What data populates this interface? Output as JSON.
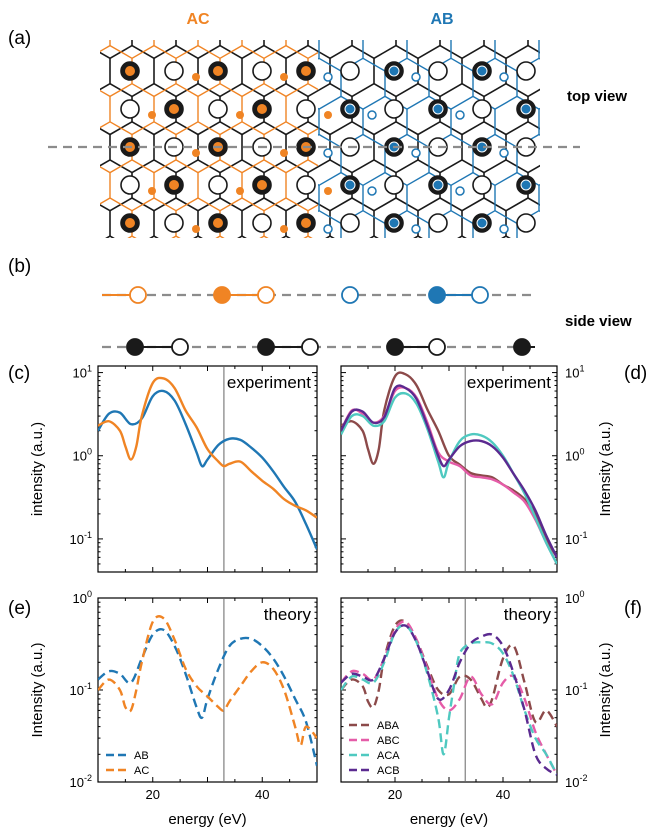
{
  "colors": {
    "AB": "#1f77b4",
    "AC": "#f08424",
    "black": "#1a1a1a",
    "gray": "#8c8c8c",
    "ABA": "#8c4a4a",
    "ABC": "#e55ca8",
    "ACA": "#4fc9c0",
    "ACB": "#5b2a90"
  },
  "panel_labels": {
    "a": "(a)",
    "b": "(b)",
    "c": "(c)",
    "d": "(d)",
    "e": "(e)",
    "f": "(f)"
  },
  "structure": {
    "ac_label": "AC",
    "ab_label": "AB",
    "top_view_label": "top view",
    "side_view_label": "side view"
  },
  "chart_data": [
    {
      "id": "c",
      "type": "line",
      "title": "experiment",
      "ylabel": "intensity (a.u.)",
      "xlabel": "",
      "xlim": [
        10,
        50
      ],
      "ylim": [
        0.04,
        12
      ],
      "yscale": "log",
      "vline": 33,
      "xticks": [
        20,
        40
      ],
      "yticks": [
        {
          "v": 10,
          "b": "10",
          "e": "1"
        },
        {
          "v": 1,
          "b": "10",
          "e": "0"
        },
        {
          "v": 0.1,
          "b": "10",
          "e": "-1"
        }
      ],
      "series": [
        {
          "name": "AB",
          "style": "solid",
          "color_key": "AB",
          "x": [
            10,
            12,
            14,
            16,
            18,
            20,
            22,
            24,
            26,
            28,
            29,
            30,
            32,
            34,
            36,
            38,
            40,
            42,
            44,
            46,
            48,
            50
          ],
          "y": [
            2.0,
            3.2,
            3.3,
            2.4,
            2.8,
            5.2,
            6.0,
            4.6,
            2.4,
            1.1,
            0.75,
            0.9,
            1.35,
            1.6,
            1.55,
            1.25,
            0.95,
            0.65,
            0.42,
            0.28,
            0.15,
            0.075
          ]
        },
        {
          "name": "AC",
          "style": "solid",
          "color_key": "AC",
          "x": [
            10,
            12,
            14,
            15,
            16,
            17,
            18,
            20,
            22,
            24,
            26,
            28,
            30,
            32,
            33,
            34,
            36,
            38,
            40,
            42,
            44,
            46,
            48,
            50
          ],
          "y": [
            2.3,
            2.6,
            2.0,
            1.3,
            0.9,
            1.3,
            3.0,
            7.5,
            8.5,
            6.5,
            3.5,
            2.2,
            1.2,
            0.85,
            0.75,
            0.8,
            0.85,
            0.65,
            0.5,
            0.4,
            0.3,
            0.25,
            0.22,
            0.18
          ]
        }
      ]
    },
    {
      "id": "d",
      "type": "line",
      "title": "experiment",
      "ylabel": "Intensity (a.u.)",
      "xlabel": "",
      "xlim": [
        10,
        50
      ],
      "ylim": [
        0.04,
        12
      ],
      "yscale": "log",
      "vline": 33,
      "xticks": [
        20,
        40
      ],
      "yticks": [
        {
          "v": 10,
          "b": "10",
          "e": "1"
        },
        {
          "v": 1,
          "b": "10",
          "e": "0"
        },
        {
          "v": 0.1,
          "b": "10",
          "e": "-1"
        }
      ],
      "series": [
        {
          "name": "ABA",
          "style": "solid",
          "color_key": "ABA",
          "x": [
            10,
            12,
            14,
            15,
            16,
            17,
            18,
            20,
            22,
            24,
            26,
            28,
            30,
            32,
            34,
            36,
            38,
            40,
            42,
            44,
            46,
            48,
            50
          ],
          "y": [
            2.3,
            2.6,
            2.0,
            1.2,
            0.8,
            1.2,
            3.5,
            9.0,
            9.5,
            7.0,
            3.6,
            2.0,
            1.0,
            0.78,
            0.62,
            0.58,
            0.55,
            0.45,
            0.38,
            0.3,
            0.2,
            0.1,
            0.06
          ]
        },
        {
          "name": "ABC",
          "style": "solid",
          "color_key": "ABC",
          "x": [
            10,
            12,
            14,
            16,
            18,
            20,
            22,
            24,
            26,
            28,
            30,
            32,
            34,
            36,
            38,
            40,
            42,
            44,
            46,
            48,
            50
          ],
          "y": [
            2.0,
            3.5,
            3.2,
            2.5,
            3.0,
            6.0,
            6.5,
            5.0,
            2.5,
            1.1,
            0.85,
            0.75,
            0.58,
            0.55,
            0.52,
            0.45,
            0.36,
            0.28,
            0.17,
            0.09,
            0.05
          ]
        },
        {
          "name": "ACA",
          "style": "solid",
          "color_key": "ACA",
          "x": [
            10,
            12,
            14,
            16,
            18,
            20,
            22,
            24,
            26,
            28,
            29,
            30,
            32,
            34,
            36,
            38,
            40,
            42,
            44,
            46,
            48,
            50
          ],
          "y": [
            1.8,
            3.0,
            3.0,
            2.3,
            2.6,
            5.0,
            5.6,
            4.2,
            2.1,
            0.85,
            0.55,
            0.85,
            1.5,
            1.8,
            1.75,
            1.45,
            1.0,
            0.6,
            0.35,
            0.18,
            0.09,
            0.05
          ]
        },
        {
          "name": "ACB",
          "style": "solid",
          "color_key": "ACB",
          "x": [
            10,
            12,
            14,
            16,
            18,
            20,
            22,
            24,
            26,
            28,
            29,
            30,
            32,
            34,
            36,
            38,
            40,
            42,
            44,
            46,
            48,
            50
          ],
          "y": [
            2.0,
            3.4,
            3.4,
            2.5,
            2.9,
            6.5,
            6.5,
            4.8,
            2.3,
            1.0,
            0.75,
            0.9,
            1.3,
            1.5,
            1.5,
            1.3,
            0.95,
            0.6,
            0.38,
            0.22,
            0.11,
            0.06
          ]
        }
      ]
    },
    {
      "id": "e",
      "type": "line",
      "title": "theory",
      "ylabel": "Intensity (a.u.)",
      "xlabel": "energy (eV)",
      "xlim": [
        10,
        50
      ],
      "ylim": [
        0.01,
        1
      ],
      "yscale": "log",
      "vline": 33,
      "xticks": [
        20,
        40
      ],
      "yticks": [
        {
          "v": 1,
          "b": "10",
          "e": "0"
        },
        {
          "v": 0.1,
          "b": "10",
          "e": "-1"
        },
        {
          "v": 0.01,
          "b": "10",
          "e": "-2"
        }
      ],
      "legend": "lower-left",
      "series": [
        {
          "name": "AB",
          "style": "dashed",
          "color_key": "AB",
          "x": [
            10,
            12,
            14,
            16,
            18,
            20,
            22,
            24,
            26,
            28,
            29,
            30,
            32,
            34,
            36,
            38,
            40,
            42,
            44,
            46,
            48,
            50
          ],
          "y": [
            0.13,
            0.16,
            0.15,
            0.12,
            0.22,
            0.4,
            0.45,
            0.3,
            0.15,
            0.065,
            0.05,
            0.08,
            0.17,
            0.3,
            0.36,
            0.36,
            0.3,
            0.22,
            0.14,
            0.08,
            0.045,
            0.015
          ]
        },
        {
          "name": "AC",
          "style": "dashed",
          "color_key": "AC",
          "x": [
            10,
            12,
            14,
            15,
            16,
            17,
            18,
            20,
            22,
            24,
            26,
            28,
            30,
            32,
            33,
            34,
            36,
            38,
            40,
            42,
            44,
            46,
            47,
            48,
            50
          ],
          "y": [
            0.1,
            0.13,
            0.1,
            0.065,
            0.06,
            0.1,
            0.2,
            0.55,
            0.6,
            0.35,
            0.17,
            0.11,
            0.085,
            0.065,
            0.06,
            0.075,
            0.11,
            0.16,
            0.2,
            0.17,
            0.1,
            0.04,
            0.025,
            0.04,
            0.03
          ]
        }
      ]
    },
    {
      "id": "f",
      "type": "line",
      "title": "theory",
      "ylabel": "Intensity (a.u.)",
      "xlabel": "energy (eV)",
      "xlim": [
        10,
        50
      ],
      "ylim": [
        0.01,
        1
      ],
      "yscale": "log",
      "vline": 33,
      "xticks": [
        20,
        40
      ],
      "yticks": [
        {
          "v": 1,
          "b": "10",
          "e": "0"
        },
        {
          "v": 0.1,
          "b": "10",
          "e": "-1"
        },
        {
          "v": 0.01,
          "b": "10",
          "e": "-2"
        }
      ],
      "legend": "lower-left",
      "series": [
        {
          "name": "ABA",
          "style": "dashed",
          "color_key": "ABA",
          "x": [
            10,
            12,
            14,
            15,
            16,
            17,
            18,
            20,
            22,
            24,
            26,
            28,
            30,
            32,
            34,
            36,
            37,
            38,
            40,
            42,
            44,
            46,
            48,
            50
          ],
          "y": [
            0.1,
            0.13,
            0.11,
            0.075,
            0.065,
            0.1,
            0.22,
            0.5,
            0.55,
            0.35,
            0.18,
            0.1,
            0.09,
            0.14,
            0.13,
            0.08,
            0.065,
            0.08,
            0.22,
            0.3,
            0.12,
            0.045,
            0.06,
            0.04
          ]
        },
        {
          "name": "ABC",
          "style": "dashed",
          "color_key": "ABC",
          "x": [
            10,
            12,
            14,
            16,
            18,
            20,
            22,
            24,
            26,
            28,
            30,
            32,
            34,
            36,
            38,
            40,
            42,
            44,
            46,
            48,
            50
          ],
          "y": [
            0.12,
            0.16,
            0.15,
            0.13,
            0.22,
            0.45,
            0.55,
            0.35,
            0.17,
            0.08,
            0.06,
            0.08,
            0.14,
            0.09,
            0.07,
            0.12,
            0.14,
            0.08,
            0.035,
            0.02,
            0.012
          ]
        },
        {
          "name": "ACA",
          "style": "dashed",
          "color_key": "ACA",
          "x": [
            10,
            12,
            14,
            16,
            18,
            20,
            22,
            24,
            26,
            28,
            29,
            30,
            31,
            32,
            34,
            36,
            38,
            40,
            42,
            44,
            46,
            48,
            50
          ],
          "y": [
            0.1,
            0.14,
            0.13,
            0.12,
            0.2,
            0.42,
            0.5,
            0.33,
            0.15,
            0.05,
            0.02,
            0.05,
            0.12,
            0.25,
            0.32,
            0.33,
            0.32,
            0.25,
            0.14,
            0.06,
            0.03,
            0.02,
            0.012
          ]
        },
        {
          "name": "ACB",
          "style": "dashed",
          "color_key": "ACB",
          "x": [
            10,
            12,
            14,
            16,
            18,
            20,
            22,
            24,
            26,
            28,
            30,
            32,
            34,
            36,
            38,
            40,
            42,
            44,
            46,
            48,
            50
          ],
          "y": [
            0.12,
            0.15,
            0.14,
            0.13,
            0.22,
            0.42,
            0.5,
            0.33,
            0.16,
            0.08,
            0.1,
            0.2,
            0.32,
            0.38,
            0.4,
            0.3,
            0.15,
            0.06,
            0.02,
            0.014,
            0.012
          ]
        }
      ]
    }
  ]
}
